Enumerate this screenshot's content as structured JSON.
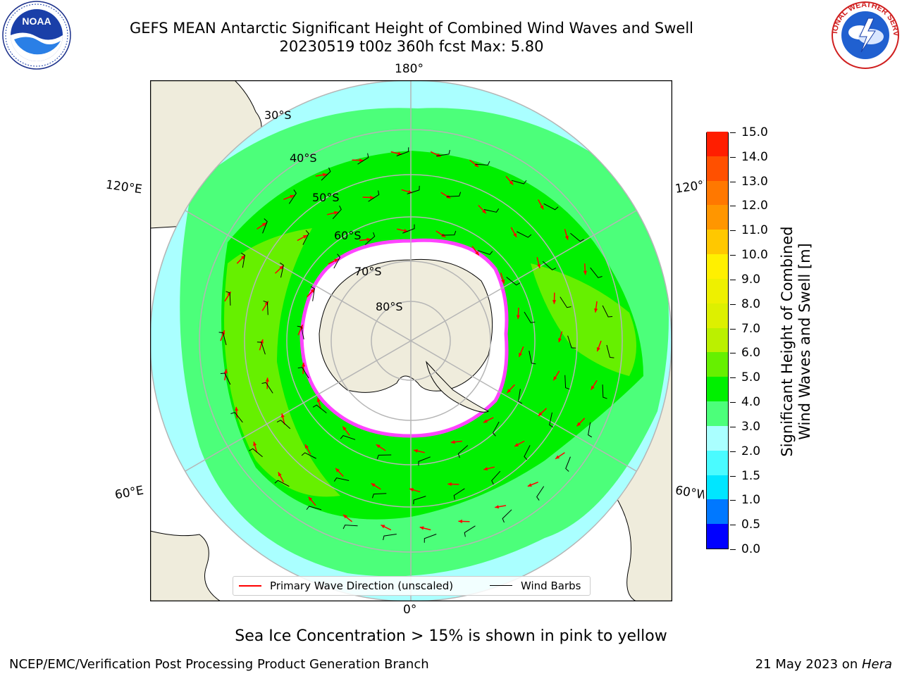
{
  "header": {
    "title_line1": "GEFS MEAN Antarctic Significant Height of Combined Wind Waves and Swell",
    "title_line2": "20230519 t00z 360h fcst   Max: 5.80"
  },
  "logos": {
    "left": "NOAA",
    "right": "NATIONAL WEATHER SERVICE"
  },
  "map": {
    "projection": "south-polar-stereographic",
    "center": "South Pole",
    "longitude_labels": {
      "top": "180°",
      "bottom": "0°",
      "left_upper": "120°E",
      "left_lower": "60°E",
      "right_upper": "120°W",
      "right_lower": "60°W"
    },
    "latitude_labels": [
      "30°S",
      "40°S",
      "50°S",
      "60°S",
      "70°S",
      "80°S"
    ],
    "colors": {
      "land": "#efecdc",
      "ocean_outside": "#ffffff",
      "ice": "#ffffff",
      "ice_edge": "#ff44ff",
      "grid": "#b5b5b5"
    }
  },
  "colorbar": {
    "label_line1": "Significant Height of Combined",
    "label_line2": "Wind Waves and Swell [m]",
    "ticks": [
      "0.0",
      "0.5",
      "1.0",
      "1.5",
      "2.0",
      "3.0",
      "4.0",
      "5.0",
      "6.0",
      "7.0",
      "8.0",
      "9.0",
      "10.0",
      "11.0",
      "12.0",
      "13.0",
      "14.0",
      "15.0"
    ],
    "colors": [
      "#0000ff",
      "#0078ff",
      "#00e6ff",
      "#4afbff",
      "#aaffff",
      "#4cff7a",
      "#00f000",
      "#66f000",
      "#bbf000",
      "#ddf000",
      "#eef000",
      "#fff000",
      "#ffc800",
      "#ff9600",
      "#ff7800",
      "#ff5000",
      "#ff1e00"
    ]
  },
  "legend": {
    "item1": "Primary Wave Direction (unscaled)",
    "item2": "Wind Barbs",
    "item1_color": "#ff0000",
    "item2_color": "#000000"
  },
  "footer": {
    "note": "Sea Ice Concentration > 15% is shown in pink to yellow",
    "credit_left": "NCEP/EMC/Verification Post Processing Product Generation Branch",
    "credit_right_prefix": "21 May 2023 on ",
    "credit_right_italic": "Hera"
  }
}
